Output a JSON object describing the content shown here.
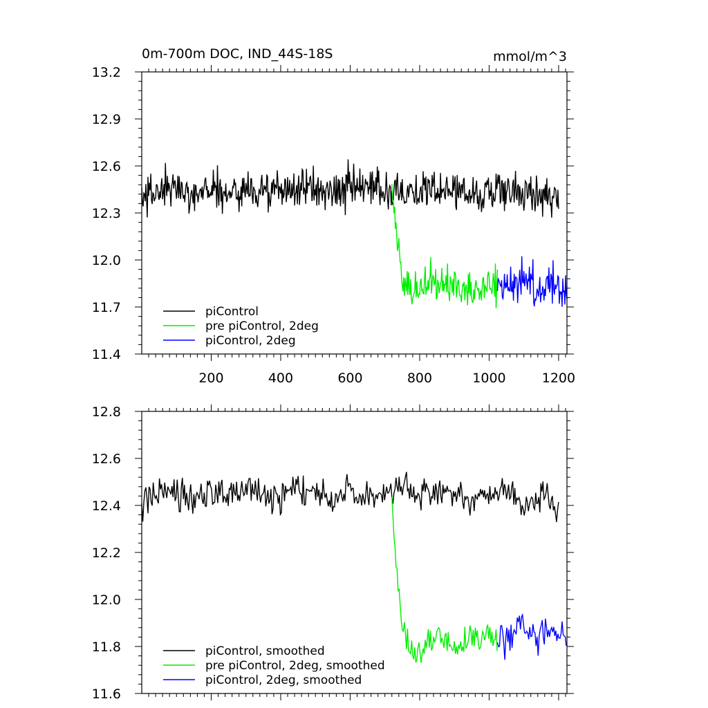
{
  "chart_data": [
    {
      "type": "line",
      "title": "0m-700m DOC, IND_44S-18S",
      "units": "mmol/m^3",
      "xlim": [
        0,
        1224
      ],
      "ylim": [
        11.4,
        13.2
      ],
      "x_ticks": [
        200,
        400,
        600,
        800,
        1000,
        1200
      ],
      "x_tick_labels": [
        "200",
        "400",
        "600",
        "800",
        "1000",
        "1200"
      ],
      "y_ticks": [
        11.4,
        11.7,
        12.0,
        12.3,
        12.6,
        12.9,
        13.2
      ],
      "y_tick_labels": [
        "11.4",
        "11.7",
        "12.0",
        "12.3",
        "12.6",
        "12.9",
        "13.2"
      ],
      "legend_position": "bottom-left",
      "series": [
        {
          "name": "piControl",
          "color": "#000000",
          "x_range": [
            0,
            1200
          ],
          "x": [
            0,
            50,
            100,
            150,
            200,
            250,
            300,
            350,
            400,
            450,
            500,
            550,
            600,
            650,
            700,
            750,
            800,
            850,
            900,
            950,
            1000,
            1050,
            1100,
            1150,
            1200
          ],
          "values": [
            12.4,
            12.44,
            12.45,
            12.43,
            12.46,
            12.42,
            12.45,
            12.44,
            12.43,
            12.47,
            12.45,
            12.44,
            12.46,
            12.44,
            12.45,
            12.46,
            12.43,
            12.44,
            12.45,
            12.42,
            12.44,
            12.45,
            12.41,
            12.43,
            12.4
          ],
          "noise": 0.13
        },
        {
          "name": "pre piControl, 2deg",
          "color": "#00ee00",
          "x_range": [
            720,
            1024
          ],
          "x": [
            720,
            735,
            750,
            770,
            800,
            850,
            900,
            950,
            1000,
            1024
          ],
          "values": [
            12.4,
            12.15,
            11.92,
            11.84,
            11.8,
            11.86,
            11.82,
            11.84,
            11.85,
            11.84
          ],
          "noise": 0.13
        },
        {
          "name": "piControl, 2deg",
          "color": "#0000ff",
          "x_range": [
            1024,
            1224
          ],
          "x": [
            1024,
            1060,
            1100,
            1140,
            1180,
            1224
          ],
          "values": [
            11.82,
            11.84,
            11.9,
            11.83,
            11.85,
            11.8
          ],
          "noise": 0.13
        }
      ]
    },
    {
      "type": "line",
      "xlim": [
        0,
        1224
      ],
      "ylim": [
        11.6,
        12.8
      ],
      "x_ticks": [
        200,
        400,
        600,
        800,
        1000,
        1200
      ],
      "y_ticks": [
        11.6,
        11.8,
        12.0,
        12.2,
        12.4,
        12.6,
        12.8
      ],
      "y_tick_labels": [
        "11.6",
        "11.8",
        "12.0",
        "12.2",
        "12.4",
        "12.6",
        "12.8"
      ],
      "legend_position": "bottom-left",
      "series": [
        {
          "name": "piControl, smoothed",
          "color": "#000000",
          "x_range": [
            0,
            1200
          ],
          "x": [
            0,
            50,
            100,
            150,
            200,
            250,
            300,
            350,
            400,
            450,
            500,
            550,
            600,
            650,
            700,
            750,
            800,
            850,
            900,
            950,
            1000,
            1050,
            1100,
            1150,
            1200
          ],
          "values": [
            12.4,
            12.46,
            12.44,
            12.42,
            12.46,
            12.43,
            12.48,
            12.45,
            12.44,
            12.47,
            12.46,
            12.42,
            12.47,
            12.44,
            12.46,
            12.47,
            12.43,
            12.45,
            12.46,
            12.41,
            12.45,
            12.46,
            12.4,
            12.44,
            12.41
          ],
          "noise": 0.07
        },
        {
          "name": "pre piControl, 2deg, smoothed",
          "color": "#00ee00",
          "x_range": [
            720,
            1024
          ],
          "x": [
            720,
            735,
            750,
            770,
            800,
            850,
            900,
            950,
            1000,
            1024
          ],
          "values": [
            12.4,
            12.1,
            11.88,
            11.78,
            11.76,
            11.85,
            11.8,
            11.83,
            11.85,
            11.83
          ],
          "noise": 0.06
        },
        {
          "name": "piControl, 2deg, smoothed",
          "color": "#0000ff",
          "x_range": [
            1024,
            1224
          ],
          "x": [
            1024,
            1060,
            1100,
            1140,
            1180,
            1224
          ],
          "values": [
            11.82,
            11.84,
            11.9,
            11.85,
            11.86,
            11.84
          ],
          "noise": 0.07
        }
      ]
    }
  ]
}
